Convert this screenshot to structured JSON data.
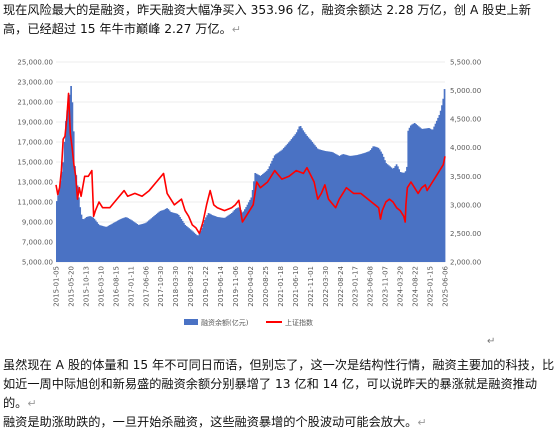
{
  "paragraphs": [
    "现在风险最大的是融资，昨天融资大幅净买入 353.96 亿，融资余额达 2.28 万亿，创 A 股史上新高，已经超过 15 年牛市巅峰 2.27 万亿。",
    "虽然现在 A 股的体量和 15 年不可同日而语，但别忘了，这一次是结构性行情，融资主要加的科技，比如近一周中际旭创和新易盛的融资余额分别暴增了 13 亿和 14 亿，可以说昨天的暴涨就是融资推动的。",
    "融资是助涨助跌的，一旦开始杀融资，这些融资暴增的个股波动可能会放大。"
  ],
  "para_mark": "↵",
  "cursor_mark": "↵",
  "colors": {
    "bar": "#4a72c4",
    "line": "#ff0000",
    "grid": "#d9d9d9"
  },
  "chart_data": {
    "type": "bar+line",
    "y_left": {
      "ticks": [
        "5,000.00",
        "7,000.00",
        "9,000.00",
        "11,000.00",
        "13,000.00",
        "15,000.00",
        "17,000.00",
        "19,000.00",
        "21,000.00",
        "23,000.00",
        "25,000.00"
      ],
      "min": 5000,
      "max": 25000
    },
    "y_right": {
      "ticks": [
        "2,000.00",
        "2,500.00",
        "3,000.00",
        "3,500.00",
        "4,000.00",
        "4,500.00",
        "5,000.00",
        "5,500.00"
      ],
      "min": 2000,
      "max": 5500
    },
    "x_ticks": [
      "2015-01-05",
      "2015-05-20",
      "2015-10-13",
      "2016-03-10",
      "2016-08-15",
      "2017-01-11",
      "2017-06-06",
      "2017-10-30",
      "2018-03-30",
      "2018-08-23",
      "2019-01-22",
      "2019-06-14",
      "2019-11-06",
      "2020-04-02",
      "2020-08-25",
      "2021-01-18",
      "2021-06-10",
      "2021-11-01",
      "2022-03-30",
      "2022-08-24",
      "2023-01-17",
      "2023-06-08",
      "2023-11-07",
      "2024-03-29",
      "2024-08-22",
      "2025-01-15",
      "2025-06-06"
    ],
    "series": [
      {
        "name": "融资余额(亿元)",
        "type": "bar",
        "axis": "left",
        "x": [
          2015.0,
          2015.1,
          2015.2,
          2015.28,
          2015.35,
          2015.42,
          2015.47,
          2015.52,
          2015.58,
          2015.65,
          2015.7,
          2015.75,
          2015.85,
          2015.95,
          2016.05,
          2016.2,
          2016.4,
          2016.6,
          2016.8,
          2016.95,
          2017.1,
          2017.3,
          2017.5,
          2017.7,
          2017.9,
          2018.0,
          2018.1,
          2018.2,
          2018.4,
          2018.6,
          2018.8,
          2018.95,
          2019.05,
          2019.15,
          2019.25,
          2019.35,
          2019.5,
          2019.7,
          2019.9,
          2020.0,
          2020.1,
          2020.2,
          2020.3,
          2020.45,
          2020.55,
          2020.7,
          2020.9,
          2021.1,
          2021.3,
          2021.5,
          2021.7,
          2021.8,
          2021.9,
          2022.0,
          2022.1,
          2022.3,
          2022.5,
          2022.7,
          2022.9,
          2023.0,
          2023.2,
          2023.4,
          2023.6,
          2023.75,
          2023.85,
          2024.0,
          2024.1,
          2024.2,
          2024.3,
          2024.4,
          2024.5,
          2024.6,
          2024.7,
          2024.78,
          2024.82,
          2024.9,
          2025.0,
          2025.2,
          2025.4,
          2025.5,
          2025.6,
          2025.7,
          2025.75,
          2025.8,
          2025.85
        ],
        "values": [
          10800,
          12400,
          15000,
          19600,
          21000,
          22700,
          20000,
          14700,
          13200,
          10900,
          9800,
          9200,
          9500,
          9600,
          9400,
          8700,
          8500,
          8900,
          9300,
          9500,
          9200,
          8700,
          8900,
          9500,
          10100,
          10200,
          10400,
          10000,
          9800,
          8700,
          8100,
          7600,
          8200,
          9300,
          9900,
          9700,
          9500,
          9400,
          9900,
          10300,
          10500,
          9900,
          10500,
          11500,
          13900,
          13600,
          14200,
          15700,
          16200,
          17000,
          17900,
          18700,
          18100,
          17600,
          17200,
          16300,
          16100,
          16000,
          15600,
          15800,
          15600,
          15700,
          15900,
          16100,
          16600,
          16400,
          15800,
          14900,
          14600,
          14300,
          14800,
          14000,
          13900,
          14200,
          18200,
          18700,
          18900,
          18300,
          18400,
          18200,
          19000,
          19800,
          20500,
          21400,
          22800
        ]
      },
      {
        "name": "上证指数",
        "type": "line",
        "axis": "right",
        "x": [
          2015.0,
          2015.05,
          2015.1,
          2015.15,
          2015.2,
          2015.25,
          2015.3,
          2015.35,
          2015.4,
          2015.45,
          2015.5,
          2015.55,
          2015.6,
          2015.65,
          2015.7,
          2015.8,
          2015.9,
          2016.0,
          2016.05,
          2016.1,
          2016.2,
          2016.3,
          2016.5,
          2016.7,
          2016.9,
          2017.0,
          2017.2,
          2017.4,
          2017.6,
          2017.8,
          2018.0,
          2018.1,
          2018.3,
          2018.5,
          2018.6,
          2018.7,
          2018.8,
          2018.9,
          2019.0,
          2019.1,
          2019.2,
          2019.3,
          2019.4,
          2019.5,
          2019.7,
          2019.9,
          2020.0,
          2020.1,
          2020.2,
          2020.3,
          2020.4,
          2020.5,
          2020.55,
          2020.6,
          2020.7,
          2020.9,
          2021.0,
          2021.1,
          2021.3,
          2021.5,
          2021.7,
          2021.9,
          2022.0,
          2022.2,
          2022.3,
          2022.4,
          2022.5,
          2022.6,
          2022.8,
          2022.9,
          2023.0,
          2023.1,
          2023.3,
          2023.5,
          2023.7,
          2023.9,
          2024.0,
          2024.05,
          2024.1,
          2024.2,
          2024.3,
          2024.4,
          2024.5,
          2024.6,
          2024.7,
          2024.74,
          2024.76,
          2024.8,
          2024.9,
          2025.0,
          2025.1,
          2025.2,
          2025.3,
          2025.35,
          2025.4,
          2025.5,
          2025.6,
          2025.7,
          2025.8,
          2025.85
        ],
        "values": [
          3350,
          3180,
          3300,
          3600,
          4150,
          4200,
          4500,
          4950,
          4250,
          4000,
          3700,
          3500,
          3100,
          3300,
          3150,
          3500,
          3500,
          3600,
          2800,
          2900,
          3050,
          2950,
          2950,
          3100,
          3250,
          3150,
          3200,
          3150,
          3250,
          3400,
          3550,
          3200,
          3000,
          3100,
          2900,
          2800,
          2650,
          2600,
          2500,
          2700,
          3000,
          3250,
          3000,
          2950,
          2900,
          2950,
          3000,
          3080,
          2700,
          2800,
          2900,
          3000,
          3200,
          3400,
          3300,
          3400,
          3500,
          3600,
          3450,
          3500,
          3600,
          3550,
          3650,
          3400,
          3100,
          3200,
          3350,
          3100,
          2950,
          3100,
          3200,
          3300,
          3200,
          3200,
          3100,
          3000,
          2950,
          2750,
          2900,
          3050,
          3100,
          3050,
          2950,
          2900,
          2800,
          2700,
          3000,
          3300,
          3400,
          3300,
          3200,
          3300,
          3350,
          3250,
          3300,
          3400,
          3500,
          3600,
          3700,
          3850
        ]
      }
    ]
  }
}
